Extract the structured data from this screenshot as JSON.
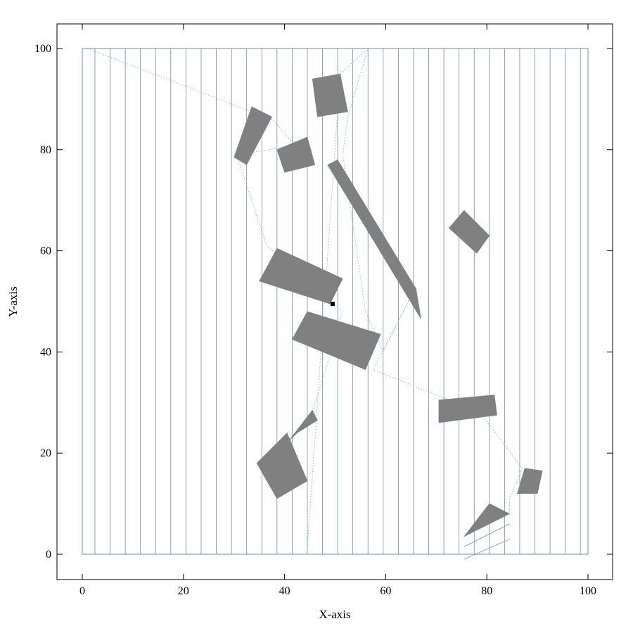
{
  "chart_data": {
    "type": "scatter",
    "title": "",
    "xlabel": "X-axis",
    "ylabel": "Y-axis",
    "xlim": [
      -5,
      105
    ],
    "ylim": [
      -5,
      105
    ],
    "xticks": [
      "0",
      "20",
      "40",
      "60",
      "80",
      "100"
    ],
    "yticks": [
      "0",
      "20",
      "40",
      "60",
      "80",
      "100"
    ],
    "colors": {
      "obstacle": "#808080",
      "sweep_line": "#6e8ca5",
      "path": "#93b4cc",
      "frame": "#000000",
      "marker": "#000000"
    },
    "boundary": [
      [
        0,
        0
      ],
      [
        100,
        0
      ],
      [
        100,
        100
      ],
      [
        0,
        100
      ]
    ],
    "sweep_lines_x": [
      0,
      2.5,
      5.5,
      8.5,
      11.5,
      14.5,
      17.5,
      20.5,
      23.5,
      26.5,
      29.5,
      32.5,
      35.5,
      38.5,
      41.5,
      44.5,
      47.5,
      50.5,
      53.5,
      56.5,
      59.5,
      62.5,
      65.5,
      68.5,
      71.5,
      74.5,
      77.5,
      80.5,
      83.5,
      86.5,
      89.5,
      92.5,
      95.5,
      98.5,
      100
    ],
    "obstacles": [
      {
        "name": "obstacle-top-center",
        "points": [
          [
            45.5,
            94
          ],
          [
            51,
            95
          ],
          [
            52.5,
            87.5
          ],
          [
            46.5,
            86.5
          ]
        ]
      },
      {
        "name": "obstacle-upper-left",
        "points": [
          [
            33.5,
            88.5
          ],
          [
            37.5,
            86.5
          ],
          [
            32.5,
            77
          ],
          [
            30,
            78.5
          ]
        ]
      },
      {
        "name": "obstacle-upper-mid",
        "points": [
          [
            38.5,
            80
          ],
          [
            44.5,
            82.5
          ],
          [
            46,
            77
          ],
          [
            40,
            75.5
          ]
        ]
      },
      {
        "name": "obstacle-long-diagonal",
        "points": [
          [
            50.5,
            78
          ],
          [
            66,
            52.5
          ],
          [
            67,
            46.5
          ],
          [
            48.5,
            77
          ]
        ]
      },
      {
        "name": "obstacle-right-small",
        "points": [
          [
            75.5,
            68
          ],
          [
            80.5,
            63
          ],
          [
            78,
            59.5
          ],
          [
            72.5,
            64.5
          ]
        ]
      },
      {
        "name": "obstacle-center-upper",
        "points": [
          [
            38.5,
            60.5
          ],
          [
            51.5,
            54.5
          ],
          [
            49,
            49.5
          ],
          [
            35,
            54
          ]
        ]
      },
      {
        "name": "obstacle-center-lower",
        "points": [
          [
            44.5,
            48
          ],
          [
            59,
            43.5
          ],
          [
            56,
            36.5
          ],
          [
            41.5,
            42.5
          ]
        ]
      },
      {
        "name": "obstacle-right-bar",
        "points": [
          [
            70.5,
            30.5
          ],
          [
            81.5,
            31.5
          ],
          [
            82,
            27.5
          ],
          [
            70.5,
            26
          ]
        ]
      },
      {
        "name": "obstacle-lower-left",
        "points": [
          [
            34.5,
            18
          ],
          [
            40.5,
            24
          ],
          [
            44.5,
            14.5
          ],
          [
            38.5,
            11
          ]
        ]
      },
      {
        "name": "obstacle-lower-left-spike",
        "points": [
          [
            40.5,
            22
          ],
          [
            45.5,
            28.5
          ],
          [
            46.5,
            26.5
          ],
          [
            42.5,
            24
          ]
        ]
      },
      {
        "name": "obstacle-bottom-right",
        "points": [
          [
            87.5,
            17
          ],
          [
            91,
            16.5
          ],
          [
            90,
            12
          ],
          [
            86,
            12
          ]
        ]
      },
      {
        "name": "obstacle-bottom-triangle",
        "points": [
          [
            75.5,
            3.5
          ],
          [
            84.5,
            8
          ],
          [
            80.5,
            10
          ]
        ]
      }
    ],
    "path": [
      [
        1,
        100
      ],
      [
        37.5,
        86
      ],
      [
        42,
        81
      ],
      [
        37,
        80
      ],
      [
        30.5,
        79
      ],
      [
        36.5,
        61
      ],
      [
        48.5,
        50
      ],
      [
        51.5,
        48
      ],
      [
        49.5,
        41
      ],
      [
        44.5,
        25
      ],
      [
        44.5,
        1
      ],
      [
        51,
        95
      ],
      [
        56.5,
        100
      ],
      [
        52.5,
        86.5
      ],
      [
        51.5,
        79
      ],
      [
        56,
        48
      ],
      [
        59.5,
        40
      ],
      [
        65.5,
        52
      ],
      [
        57.5,
        36.5
      ],
      [
        72.5,
        30.5
      ],
      [
        77.5,
        29.5
      ],
      [
        87,
        17
      ],
      [
        84.5,
        11
      ],
      [
        84.5,
        8
      ],
      [
        80.5,
        10
      ],
      [
        75.5,
        3.5
      ]
    ],
    "hatch": [
      {
        "from": [
          75.5,
          1.5
        ],
        "to": [
          84.5,
          6
        ]
      },
      {
        "from": [
          75.5,
          -1
        ],
        "to": [
          84.5,
          3
        ]
      },
      {
        "from": [
          77.5,
          0
        ],
        "to": [
          84.5,
          0
        ]
      }
    ],
    "start_marker": [
      49.5,
      49.5
    ]
  }
}
